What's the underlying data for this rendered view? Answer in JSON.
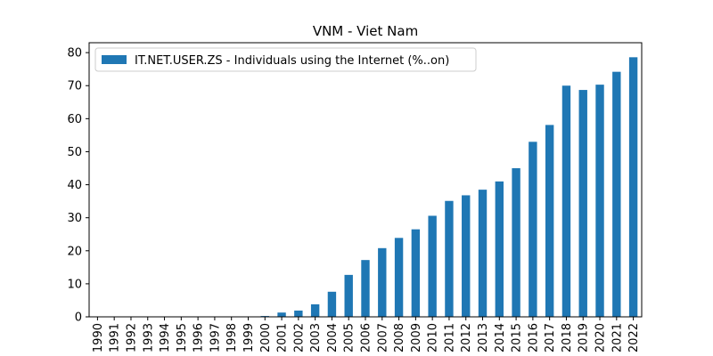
{
  "chart_data": {
    "type": "bar",
    "title": "VNM - Viet Nam",
    "xlabel": "",
    "ylabel": "",
    "categories": [
      "1990",
      "1991",
      "1992",
      "1993",
      "1994",
      "1995",
      "1996",
      "1997",
      "1998",
      "1999",
      "2000",
      "2001",
      "2002",
      "2003",
      "2004",
      "2005",
      "2006",
      "2007",
      "2008",
      "2009",
      "2010",
      "2011",
      "2012",
      "2013",
      "2014",
      "2015",
      "2016",
      "2017",
      "2018",
      "2019",
      "2020",
      "2021",
      "2022"
    ],
    "series": [
      {
        "name": "IT.NET.USER.ZS - Individuals using the Internet (%..on)",
        "color": "#1f77b4",
        "values": [
          0,
          0,
          0,
          0,
          0,
          0,
          0,
          0.01,
          0.02,
          0.1,
          0.25,
          1.3,
          1.9,
          3.8,
          7.6,
          12.7,
          17.2,
          20.8,
          23.9,
          26.5,
          30.6,
          35.1,
          36.8,
          38.5,
          41,
          45,
          53,
          58.1,
          70,
          68.7,
          70.3,
          74.2,
          78.6
        ]
      }
    ],
    "ylim": [
      0,
      83
    ],
    "yticks": [
      0,
      10,
      20,
      30,
      40,
      50,
      60,
      70,
      80
    ],
    "grid": false,
    "legend_position": "top-left"
  }
}
